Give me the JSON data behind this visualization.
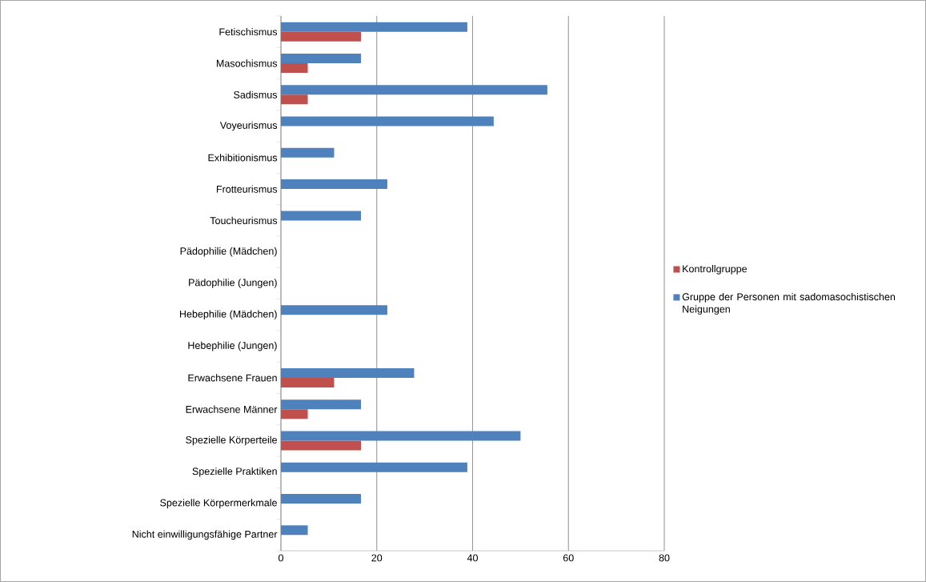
{
  "chart_data": {
    "type": "bar",
    "orientation": "horizontal",
    "categories": [
      "Fetischismus",
      "Masochismus",
      "Sadismus",
      "Voyeurismus",
      "Exhibitionismus",
      "Frotteurismus",
      "Toucheurismus",
      "Pädophilie (Mädchen)",
      "Pädophilie (Jungen)",
      "Hebephilie (Mädchen)",
      "Hebephilie (Jungen)",
      "Erwachsene Frauen",
      "Erwachsene Männer",
      "Spezielle Körperteile",
      "Spezielle Praktiken",
      "Spezielle Körpermerkmale",
      "Nicht einwilligungsfähige Partner"
    ],
    "series": [
      {
        "name": "Kontrollgruppe",
        "color": "#c0504d",
        "values": [
          16.7,
          5.6,
          5.6,
          0,
          0,
          0,
          0,
          0,
          0,
          0,
          0,
          11.1,
          5.6,
          16.7,
          0,
          0,
          0
        ]
      },
      {
        "name": "Gruppe der Personen mit sadomasochistischen Neigungen",
        "color": "#4f81bd",
        "values": [
          38.9,
          16.7,
          55.6,
          44.4,
          11.1,
          22.2,
          16.7,
          0,
          0,
          22.2,
          0,
          27.8,
          16.7,
          50,
          38.9,
          16.7,
          5.6
        ]
      }
    ],
    "xlim": [
      0,
      80
    ],
    "xticks": [
      0,
      20,
      40,
      60,
      80
    ],
    "grid": "x",
    "legend": "right"
  }
}
